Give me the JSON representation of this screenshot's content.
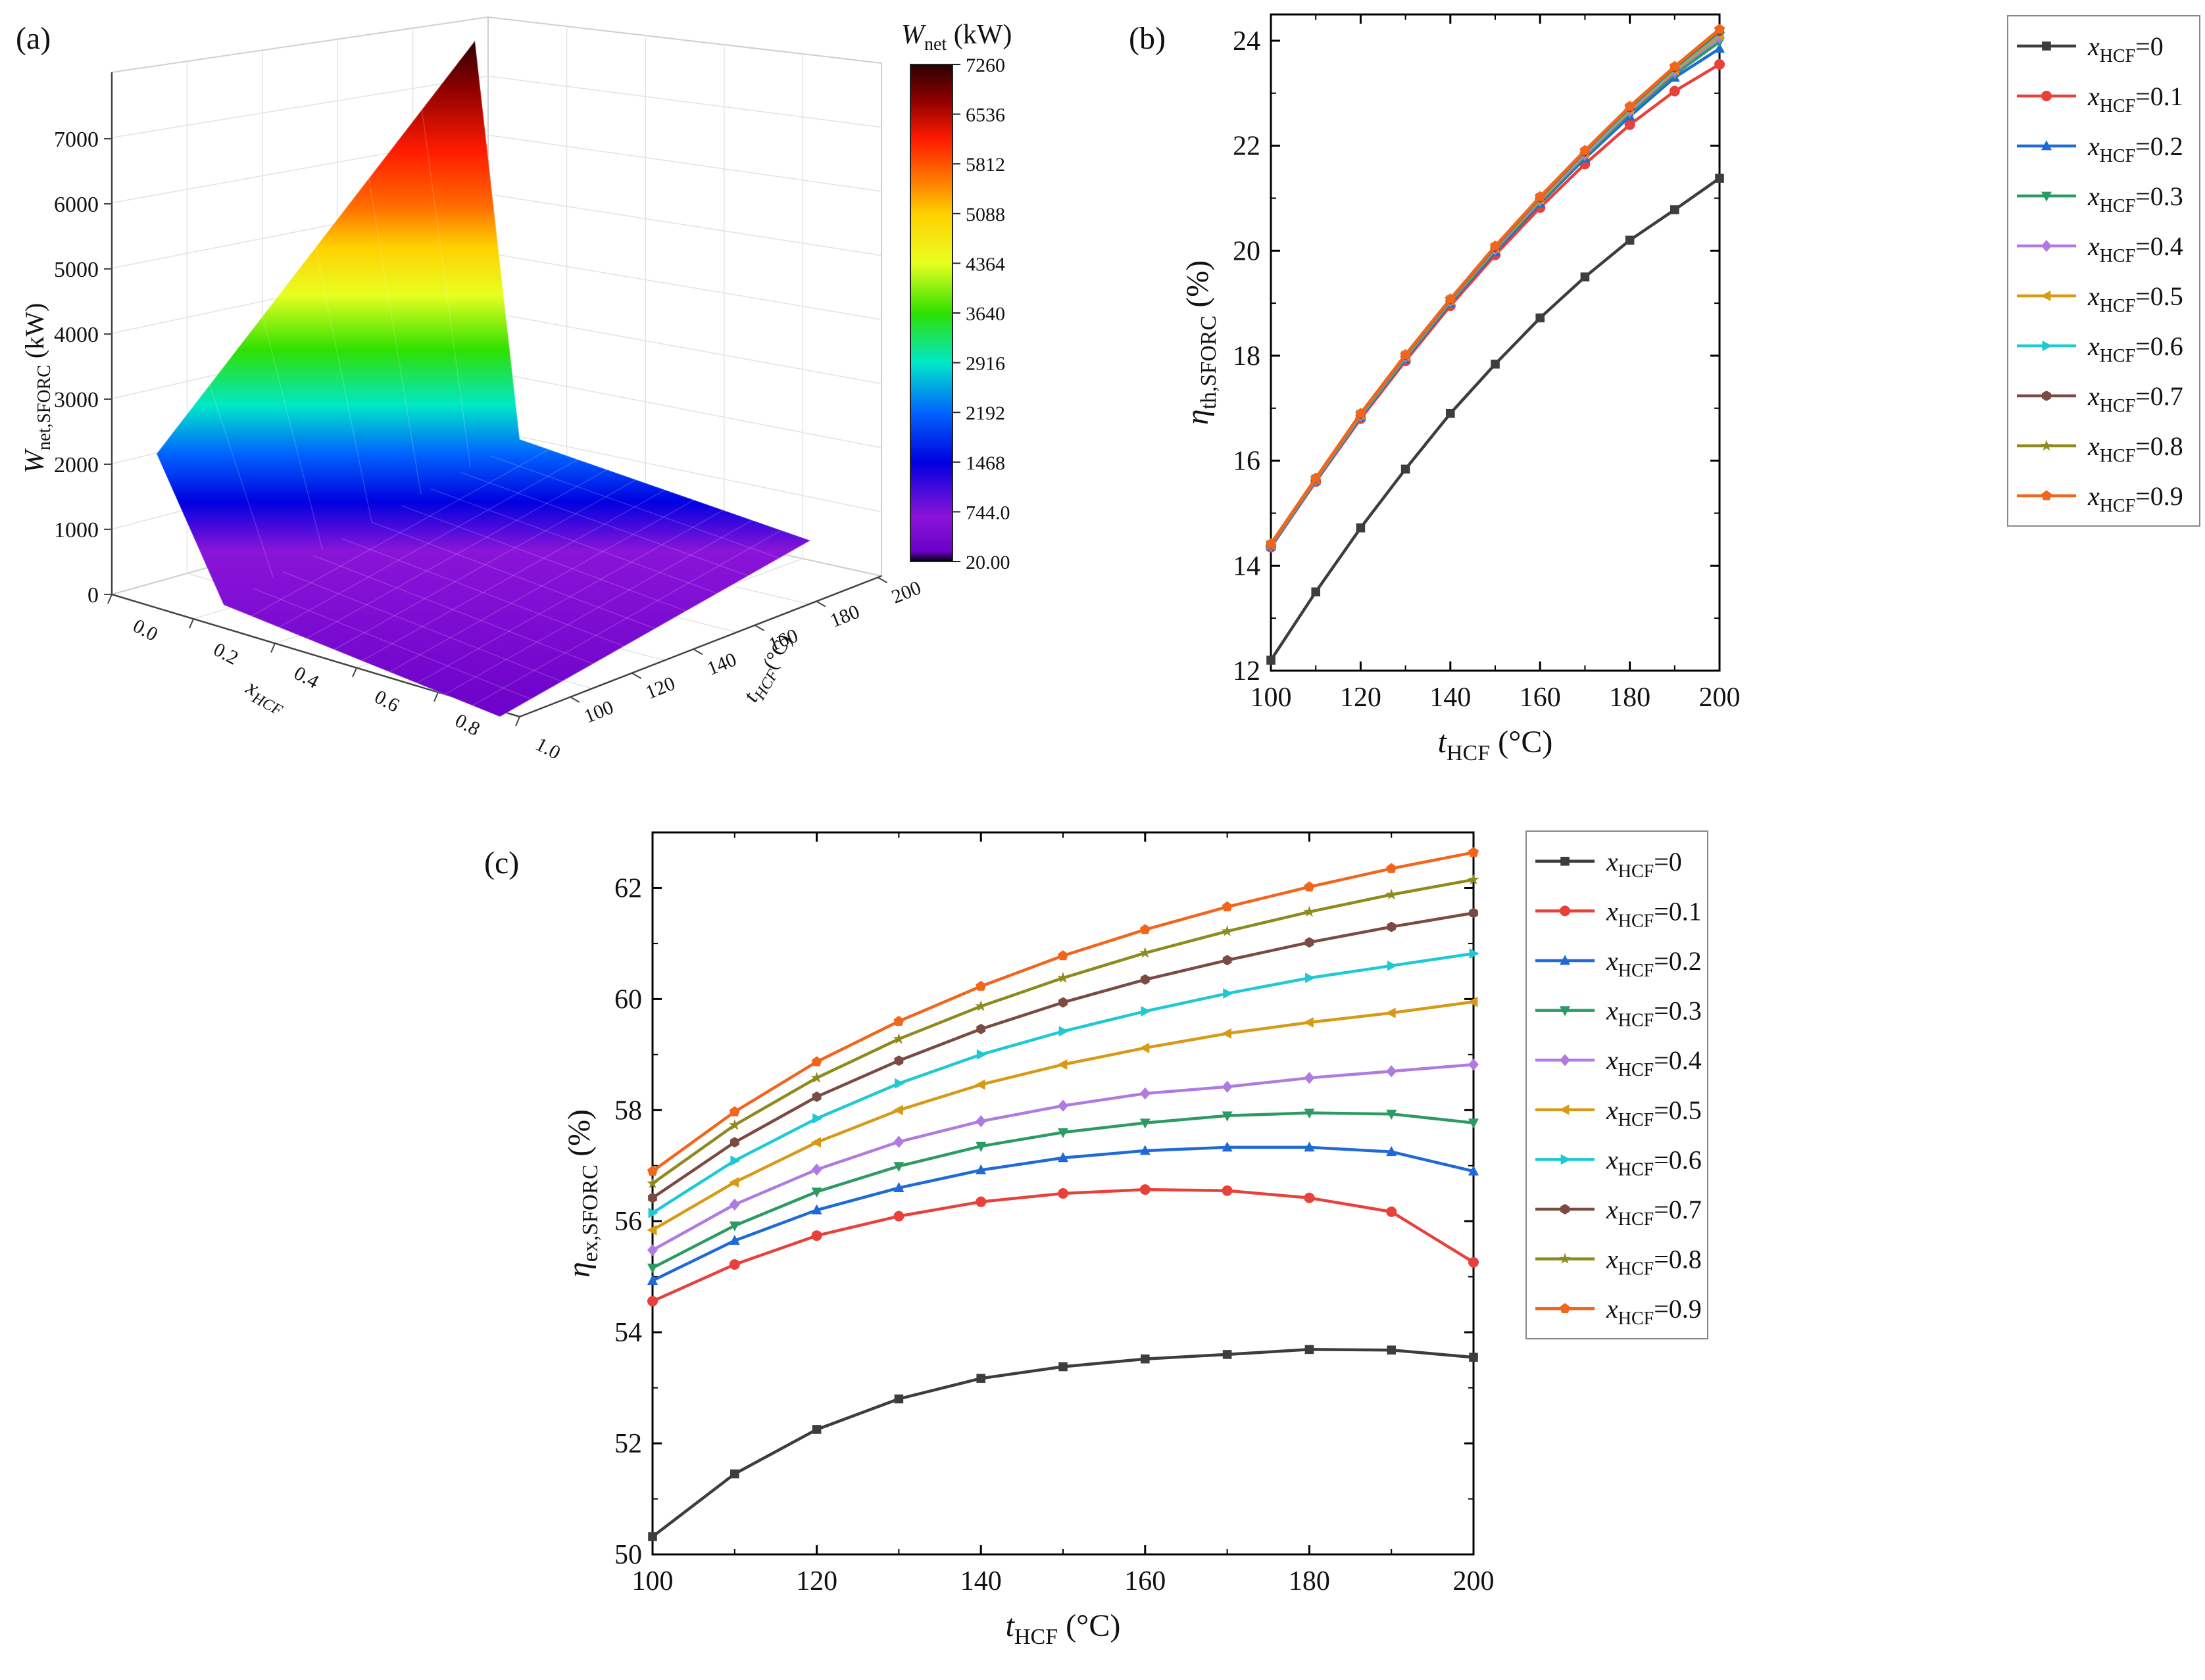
{
  "palette": [
    "#3d3d3d",
    "#e8413c",
    "#1f6ad6",
    "#2e9a63",
    "#b07be0",
    "#d79a16",
    "#1ec9d4",
    "#7b4a42",
    "#8e8a1e",
    "#f2651c"
  ],
  "markers": [
    "square",
    "circle",
    "triangle-up",
    "triangle-down",
    "diamond",
    "triangle-left",
    "triangle-right",
    "hexagon",
    "star",
    "pentagon"
  ],
  "chart_data": [
    {
      "type": "surface3d",
      "panel_label": "(a)",
      "colorbar": {
        "title_base": "W",
        "title_sub": "net",
        "title_unit": " (kW)",
        "ticks": [
          "7260",
          "6536",
          "5812",
          "5088",
          "4364",
          "3640",
          "2916",
          "2192",
          "1468",
          "744.0",
          "20.00"
        ],
        "stops": [
          "#2b0000",
          "#8b0000",
          "#ff1a00",
          "#ff6a00",
          "#ffd000",
          "#e8ff20",
          "#2fe000",
          "#00e8c8",
          "#0064ff",
          "#0000e0",
          "#6a00c8",
          "#8a14d8",
          "#000000"
        ]
      },
      "zlabel_base": "W",
      "zlabel_sub": "net,SFORC",
      "zlabel_unit": " (kW)",
      "zticks": [
        "7000",
        "6000",
        "5000",
        "4000",
        "3000",
        "2000",
        "1000",
        "0"
      ],
      "xlabel_base": "x",
      "xlabel_sub": "HCF",
      "xticks": [
        "0.0",
        "0.2",
        "0.4",
        "0.6",
        "0.8",
        "1.0"
      ],
      "ylabel_base": "t",
      "ylabel_sub": "HCF",
      "ylabel_unit": "(°C)",
      "yticks": [
        "100",
        "120",
        "140",
        "160",
        "180",
        "200"
      ]
    },
    {
      "type": "line",
      "panel_label": "(b)",
      "xlabel_base": "t",
      "xlabel_sub": "HCF",
      "xlabel_unit": " (°C)",
      "ylabel_base": "η",
      "ylabel_sub": "th,SFORC",
      "ylabel_unit": " (%)",
      "xlim": [
        100,
        200
      ],
      "ylim": [
        12,
        24.5
      ],
      "xticks": [
        100,
        120,
        140,
        160,
        180,
        200
      ],
      "yticks": [
        12,
        14,
        16,
        18,
        20,
        22,
        24
      ],
      "x": [
        100,
        110,
        120,
        130,
        140,
        150,
        160,
        170,
        180,
        190,
        200
      ],
      "series": [
        {
          "name": "0",
          "values": [
            12.2,
            13.5,
            14.72,
            15.84,
            16.9,
            17.84,
            18.72,
            19.5,
            20.2,
            20.78,
            21.38
          ]
        },
        {
          "name": "0.1",
          "values": [
            14.35,
            15.6,
            16.8,
            17.9,
            18.95,
            19.92,
            20.82,
            21.65,
            22.4,
            23.04,
            23.55
          ]
        },
        {
          "name": "0.2",
          "values": [
            14.37,
            15.62,
            16.83,
            17.94,
            19.0,
            19.98,
            20.9,
            21.76,
            22.56,
            23.3,
            23.85
          ]
        },
        {
          "name": "0.3",
          "values": [
            14.38,
            15.63,
            16.85,
            17.96,
            19.02,
            20.01,
            20.93,
            21.8,
            22.62,
            23.36,
            23.98
          ]
        },
        {
          "name": "0.4",
          "values": [
            14.39,
            15.64,
            16.86,
            17.98,
            19.04,
            20.03,
            20.96,
            21.83,
            22.66,
            23.41,
            24.06
          ]
        },
        {
          "name": "0.5",
          "values": [
            14.4,
            15.65,
            16.87,
            17.99,
            19.05,
            20.05,
            20.98,
            21.86,
            22.69,
            23.44,
            24.11
          ]
        },
        {
          "name": "0.6",
          "values": [
            14.4,
            15.65,
            16.88,
            18.0,
            19.06,
            20.06,
            21.0,
            21.88,
            22.71,
            23.47,
            24.15
          ]
        },
        {
          "name": "0.7",
          "values": [
            14.41,
            15.66,
            16.89,
            18.01,
            19.07,
            20.07,
            21.01,
            21.89,
            22.73,
            23.49,
            24.18
          ]
        },
        {
          "name": "0.8",
          "values": [
            14.41,
            15.66,
            16.89,
            18.02,
            19.08,
            20.08,
            21.02,
            21.9,
            22.74,
            23.5,
            24.2
          ]
        },
        {
          "name": "0.9",
          "values": [
            14.42,
            15.67,
            16.9,
            18.02,
            19.08,
            20.09,
            21.03,
            21.91,
            22.75,
            23.51,
            24.22
          ]
        }
      ],
      "legend": {
        "prefix_base": "x",
        "prefix_sub": "HCF",
        "sep": "=",
        "placement": "outside-right"
      }
    },
    {
      "type": "line",
      "panel_label": "(c)",
      "xlabel_base": "t",
      "xlabel_sub": "HCF",
      "xlabel_unit": " (°C)",
      "ylabel_base": "η",
      "ylabel_sub": "ex,SFORC",
      "ylabel_unit": " (%)",
      "xlim": [
        100,
        200
      ],
      "ylim": [
        50,
        63
      ],
      "xticks": [
        100,
        120,
        140,
        160,
        180,
        200
      ],
      "yticks": [
        50,
        52,
        54,
        56,
        58,
        60,
        62
      ],
      "x": [
        100,
        110,
        120,
        130,
        140,
        150,
        160,
        170,
        180,
        190,
        200
      ],
      "series": [
        {
          "name": "0",
          "values": [
            50.32,
            51.45,
            52.25,
            52.8,
            53.17,
            53.38,
            53.52,
            53.6,
            53.69,
            53.68,
            53.55
          ]
        },
        {
          "name": "0.1",
          "values": [
            54.56,
            55.22,
            55.74,
            56.09,
            56.35,
            56.5,
            56.57,
            56.55,
            56.42,
            56.17,
            55.26
          ]
        },
        {
          "name": "0.2",
          "values": [
            54.93,
            55.65,
            56.2,
            56.6,
            56.92,
            57.14,
            57.27,
            57.33,
            57.33,
            57.25,
            56.9
          ]
        },
        {
          "name": "0.3",
          "values": [
            55.16,
            55.92,
            56.53,
            56.99,
            57.35,
            57.6,
            57.77,
            57.9,
            57.95,
            57.93,
            57.77
          ]
        },
        {
          "name": "0.4",
          "values": [
            55.48,
            56.3,
            56.93,
            57.43,
            57.8,
            58.08,
            58.3,
            58.42,
            58.58,
            58.7,
            58.82
          ]
        },
        {
          "name": "0.5",
          "values": [
            55.84,
            56.7,
            57.42,
            58.0,
            58.46,
            58.82,
            59.12,
            59.38,
            59.58,
            59.75,
            59.95
          ]
        },
        {
          "name": "0.6",
          "values": [
            56.15,
            57.09,
            57.85,
            58.48,
            59.0,
            59.42,
            59.78,
            60.1,
            60.38,
            60.6,
            60.82
          ]
        },
        {
          "name": "0.7",
          "values": [
            56.42,
            57.42,
            58.24,
            58.89,
            59.46,
            59.94,
            60.35,
            60.7,
            61.02,
            61.3,
            61.55
          ]
        },
        {
          "name": "0.8",
          "values": [
            56.68,
            57.73,
            58.58,
            59.28,
            59.87,
            60.38,
            60.83,
            61.22,
            61.57,
            61.88,
            62.15
          ]
        },
        {
          "name": "0.9",
          "values": [
            56.9,
            57.97,
            58.87,
            59.6,
            60.23,
            60.78,
            61.25,
            61.66,
            62.02,
            62.35,
            62.64
          ]
        }
      ],
      "legend": {
        "prefix_base": "x",
        "prefix_sub": "HCF",
        "sep": "=",
        "placement": "outside-right"
      }
    }
  ]
}
